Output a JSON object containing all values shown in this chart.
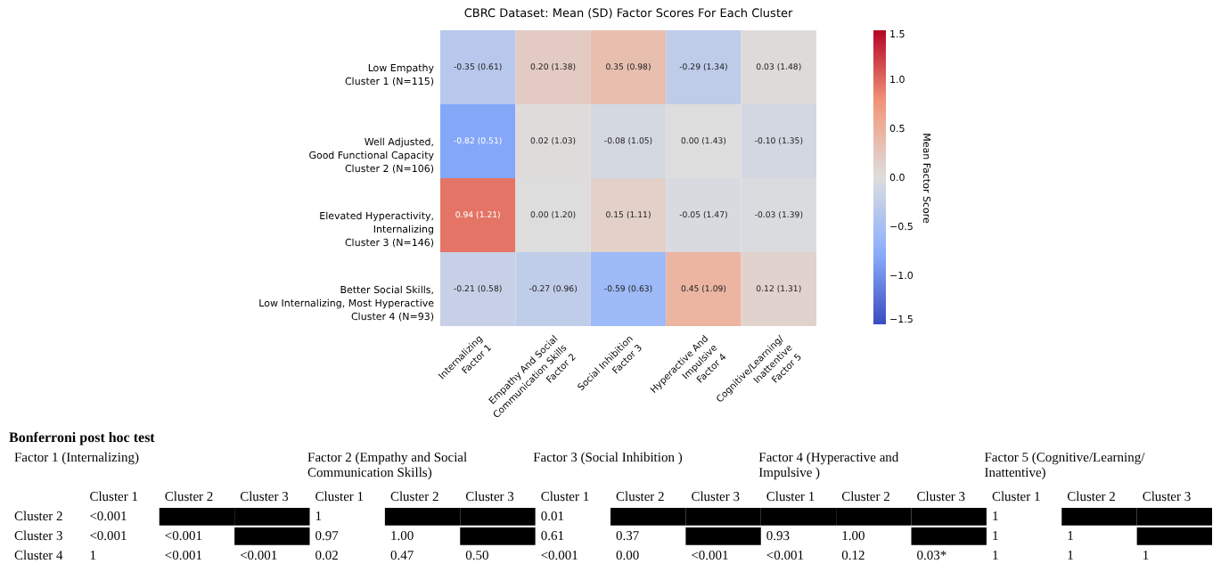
{
  "chart_data": [
    {
      "type": "heatmap",
      "title": "CBRC Dataset: Mean (SD) Factor Scores For Each Cluster",
      "clabel": "Mean Factor Score",
      "categories": [
        "Internalizing\nFactor 1",
        "Empathy And Social\nCommunication Skills\nFactor 2",
        "Social Inhibition\nFactor 3",
        "Hyperactive And\nImpulsive\nFactor 4",
        "Cognitive/Learning/\nInattentive\nFactor 5"
      ],
      "y_categories": [
        "Low Empathy\nCluster 1 (N=115)",
        "Well Adjusted,\nGood Functional Capacity\nCluster 2 (N=106)",
        "Elevated Hyperactivity,\nInternalizing\nCluster 3 (N=146)",
        "Better Social Skills,\nLow Internalizing, Most Hyperactive\nCluster 4 (N=93)"
      ],
      "cells": [
        [
          -0.35,
          0.2,
          0.35,
          -0.29,
          0.03
        ],
        [
          -0.82,
          0.02,
          -0.08,
          0.0,
          -0.1
        ],
        [
          0.94,
          0.0,
          0.15,
          -0.05,
          -0.03
        ],
        [
          -0.21,
          -0.27,
          -0.59,
          0.45,
          0.12
        ]
      ],
      "cell_labels": [
        [
          "-0.35 (0.61)",
          "0.20 (1.38)",
          "0.35 (0.98)",
          "-0.29 (1.34)",
          "0.03 (1.48)"
        ],
        [
          "-0.82 (0.51)",
          "0.02 (1.03)",
          "-0.08 (1.05)",
          "0.00 (1.43)",
          "-0.10 (1.35)"
        ],
        [
          "0.94 (1.21)",
          "0.00 (1.20)",
          "0.15 (1.11)",
          "-0.05 (1.47)",
          "-0.03 (1.39)"
        ],
        [
          "-0.21 (0.58)",
          "-0.27 (0.96)",
          "-0.59 (0.63)",
          "0.45 (1.09)",
          "0.12 (1.31)"
        ]
      ],
      "clim": [
        -1.5,
        1.5
      ],
      "cticks": [
        {
          "value": -1.5,
          "label": "−1.5"
        },
        {
          "value": -1,
          "label": "−1.0"
        },
        {
          "value": -0.5,
          "label": "−0.5"
        },
        {
          "value": 0,
          "label": "0.0"
        },
        {
          "value": 0.5,
          "label": "0.5"
        },
        {
          "value": 1,
          "label": "1.0"
        },
        {
          "value": 1.5,
          "label": "1.5"
        }
      ]
    },
    {
      "type": "other",
      "title": "Bonferroni post hoc test",
      "annotations": [
        "Factor 1 (Internalizing)",
        "Factor 2 (Empathy and Social\nCommunication Skills)",
        "Factor 3 (Social Inhibition )",
        "Factor 4 (Hyperactive and\nImpulsive )",
        "Factor 5 (Cognitive/Learning/\nInattentive)"
      ],
      "categories": [
        "Cluster 1",
        "Cluster 2",
        "Cluster 3",
        "Cluster 1",
        "Cluster 2",
        "Cluster 3",
        "Cluster 1",
        "Cluster 2",
        "Cluster 3",
        "Cluster 1",
        "Cluster 2",
        "Cluster 3",
        "Cluster 1",
        "Cluster 2",
        "Cluster 3"
      ],
      "y_categories": [
        "Cluster 2",
        "Cluster 3",
        "Cluster 4"
      ],
      "cell_labels": [
        [
          "<0.001",
          null,
          null,
          "1",
          null,
          null,
          "0.01",
          null,
          null,
          null,
          null,
          null,
          "1",
          null,
          null
        ],
        [
          "<0.001",
          "<0.001",
          null,
          "0.97",
          "1.00",
          null,
          "0.61",
          "0.37",
          null,
          "0.93",
          "1.00",
          null,
          "1",
          "1",
          null
        ],
        [
          "1",
          "<0.001",
          "<0.001",
          "0.02",
          "0.47",
          "0.50",
          "<0.001",
          "0.00",
          "<0.001",
          "<0.001",
          "0.12",
          "0.03*",
          "1",
          "1",
          "1"
        ]
      ]
    }
  ]
}
